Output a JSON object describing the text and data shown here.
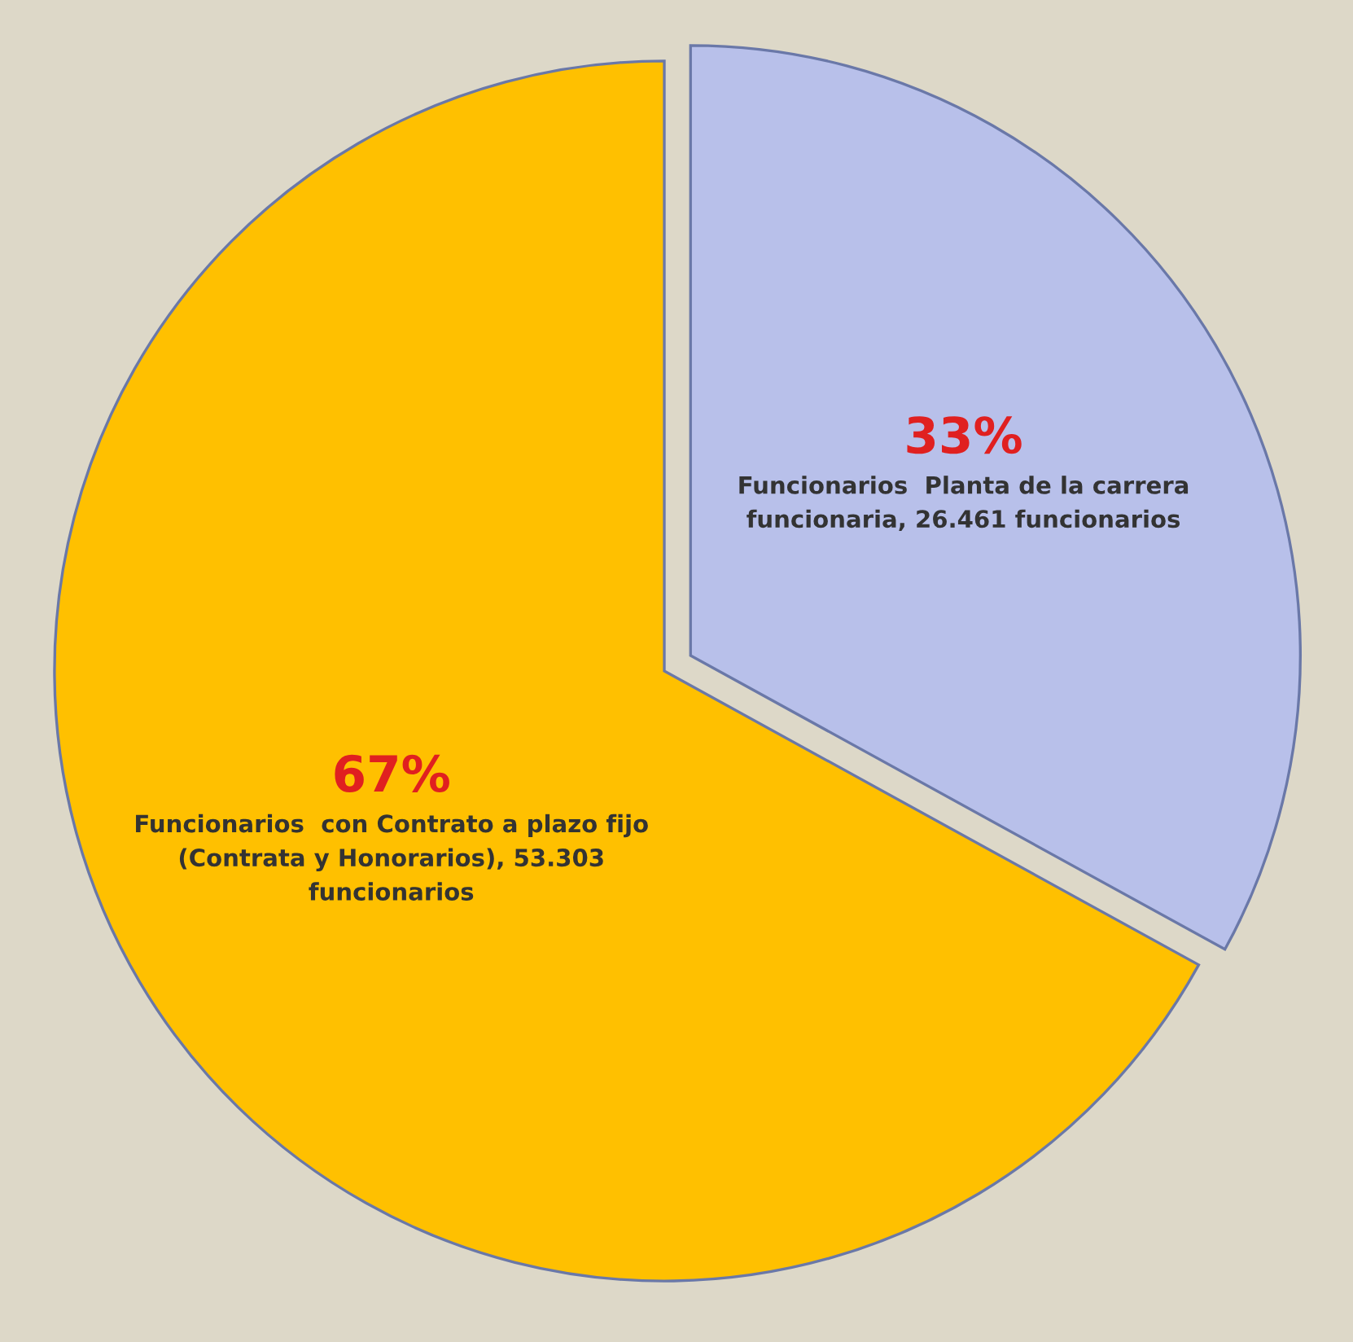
{
  "chart_data": {
    "type": "pie",
    "categories": [
      "Funcionarios  Planta de la carrera funcionaria, 26.461 funcionarios",
      "Funcionarios  con Contrato a plazo fijo (Contrata y Honorarios), 53.303 funcionarios"
    ],
    "values": [
      33,
      67
    ],
    "value_labels": [
      "33%",
      "67%"
    ],
    "colors": [
      "#b8c0ea",
      "#ffc000"
    ]
  }
}
